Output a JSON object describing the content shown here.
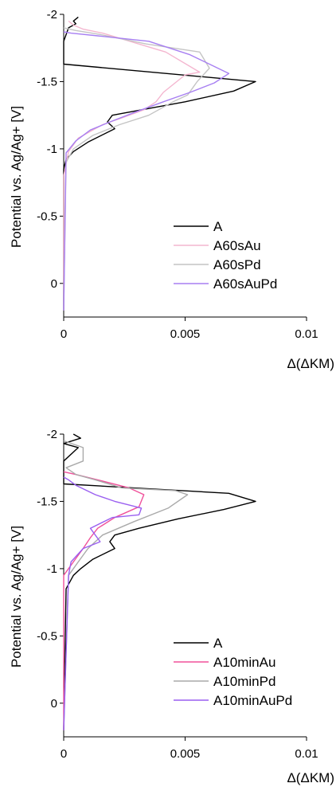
{
  "chart_data": [
    {
      "type": "line",
      "orientation": "vertical-profile",
      "xlabel": "Δ(ΔKM)",
      "ylabel": "Potential vs. Ag/Ag+ [V]",
      "xlim": [
        0,
        0.01
      ],
      "ylim": [
        0.25,
        -2.0
      ],
      "xticks": [
        0,
        0.005,
        0.01
      ],
      "xtick_labels": [
        "0",
        "0.005",
        "0.01"
      ],
      "yticks": [
        -2,
        -1.5,
        -1,
        -0.5,
        0
      ],
      "ytick_labels": [
        "-2",
        "-1.5",
        "-1",
        "-0.5",
        "0"
      ],
      "grid": false,
      "legend_position": "bottom-right",
      "series": [
        {
          "name": "A",
          "color": "#000000",
          "x": [
            0.0006,
            0.0004,
            0.0005,
            0.0002,
            0.0,
            0.0,
            0.0,
            0.0079,
            0.007,
            0.005,
            0.0035,
            0.002,
            0.0018,
            0.0021,
            0.001,
            0.0004,
            0.0001,
            0.0,
            0.0,
            0.0,
            0.0
          ],
          "y": [
            -1.98,
            -1.95,
            -1.93,
            -1.9,
            -1.8,
            -1.63,
            -1.63,
            -1.5,
            -1.43,
            -1.35,
            -1.3,
            -1.25,
            -1.2,
            -1.15,
            -1.05,
            -0.98,
            -0.92,
            -0.85,
            -0.5,
            -0.1,
            0.2
          ]
        },
        {
          "name": "A60sAu",
          "color": "#f4b6cf",
          "x": [
            0.0002,
            0.0004,
            0.0008,
            0.0016,
            0.0042,
            0.0056,
            0.005,
            0.0041,
            0.0038,
            0.0033,
            0.0024,
            0.0016,
            0.0006,
            0.0002,
            0.0,
            0.0
          ],
          "y": [
            -1.95,
            -1.92,
            -1.89,
            -1.86,
            -1.72,
            -1.57,
            -1.55,
            -1.42,
            -1.35,
            -1.29,
            -1.23,
            -1.18,
            -1.08,
            -0.98,
            -0.8,
            0.2
          ]
        },
        {
          "name": "A60sPd",
          "color": "#c4c4c4",
          "x": [
            0.0,
            0.0005,
            0.0015,
            0.0034,
            0.0056,
            0.006,
            0.0055,
            0.0051,
            0.0045,
            0.0035,
            0.0023,
            0.0012,
            0.0004,
            0.0001,
            0.0
          ],
          "y": [
            -1.9,
            -1.88,
            -1.85,
            -1.78,
            -1.72,
            -1.6,
            -1.5,
            -1.4,
            -1.35,
            -1.25,
            -1.18,
            -1.1,
            -1.0,
            -0.9,
            0.2
          ]
        },
        {
          "name": "A60sAuPd",
          "color": "#a77ff2",
          "x": [
            0.0,
            0.0003,
            0.0014,
            0.0035,
            0.0052,
            0.0068,
            0.0062,
            0.0052,
            0.0041,
            0.0029,
            0.0019,
            0.0011,
            0.0005,
            0.0001,
            0.0
          ],
          "y": [
            -1.87,
            -1.86,
            -1.84,
            -1.8,
            -1.7,
            -1.56,
            -1.49,
            -1.42,
            -1.35,
            -1.27,
            -1.2,
            -1.14,
            -1.06,
            -0.97,
            0.2
          ]
        }
      ]
    },
    {
      "type": "line",
      "orientation": "vertical-profile",
      "xlabel": "Δ(ΔKM)",
      "ylabel": "Potential vs. Ag/Ag+ [V]",
      "xlim": [
        0,
        0.01
      ],
      "ylim": [
        0.25,
        -2.0
      ],
      "xticks": [
        0,
        0.005,
        0.01
      ],
      "xtick_labels": [
        "0",
        "0.005",
        "0.01"
      ],
      "yticks": [
        -2,
        -1.5,
        -1,
        -0.5,
        0
      ],
      "ytick_labels": [
        "-2",
        "-1.5",
        "-1",
        "-0.5",
        "0"
      ],
      "grid": false,
      "legend_position": "bottom-right",
      "series": [
        {
          "name": "A",
          "color": "#000000",
          "x": [
            0.0004,
            0.0007,
            0.0,
            0.0006,
            0.0,
            0.0,
            0.0068,
            0.0079,
            0.0066,
            0.0047,
            0.0031,
            0.0021,
            0.0019,
            0.0021,
            0.0012,
            0.0007,
            0.0004,
            0.0001,
            0.0
          ],
          "y": [
            -2.0,
            -1.97,
            -1.93,
            -1.9,
            -1.8,
            -1.63,
            -1.56,
            -1.5,
            -1.44,
            -1.37,
            -1.3,
            -1.25,
            -1.2,
            -1.15,
            -1.07,
            -1.0,
            -0.95,
            -0.85,
            0.2
          ]
        },
        {
          "name": "A10minAu",
          "color": "#f0509a",
          "x": [
            0.0,
            0.0005,
            0.0014,
            0.0027,
            0.0033,
            0.0031,
            0.0021,
            0.0014,
            0.0011,
            0.0008,
            0.0004,
            0.0,
            0.0
          ],
          "y": [
            -1.72,
            -1.7,
            -1.66,
            -1.6,
            -1.55,
            -1.46,
            -1.38,
            -1.3,
            -1.23,
            -1.15,
            -1.05,
            -0.95,
            0.2
          ]
        },
        {
          "name": "A10minPd",
          "color": "#aaaaaa",
          "x": [
            0.0,
            0.0008,
            0.0008,
            0.0001,
            0.0005,
            0.0013,
            0.0024,
            0.0046,
            0.0051,
            0.0043,
            0.0029,
            0.0016,
            0.001,
            0.0006,
            0.0002,
            0.0
          ],
          "y": [
            -1.95,
            -1.9,
            -1.8,
            -1.75,
            -1.7,
            -1.66,
            -1.6,
            -1.58,
            -1.55,
            -1.45,
            -1.35,
            -1.25,
            -1.15,
            -1.05,
            -0.95,
            0.2
          ]
        },
        {
          "name": "A10minAuPd",
          "color": "#9a5ff0",
          "x": [
            0.0,
            0.0002,
            0.0005,
            0.0013,
            0.0021,
            0.0032,
            0.0031,
            0.002,
            0.0011,
            0.0015,
            0.0008,
            0.0003,
            0.0002,
            0.0
          ],
          "y": [
            -1.68,
            -1.66,
            -1.62,
            -1.55,
            -1.5,
            -1.45,
            -1.4,
            -1.38,
            -1.3,
            -1.2,
            -1.15,
            -1.05,
            -0.95,
            0.2
          ]
        }
      ]
    }
  ]
}
